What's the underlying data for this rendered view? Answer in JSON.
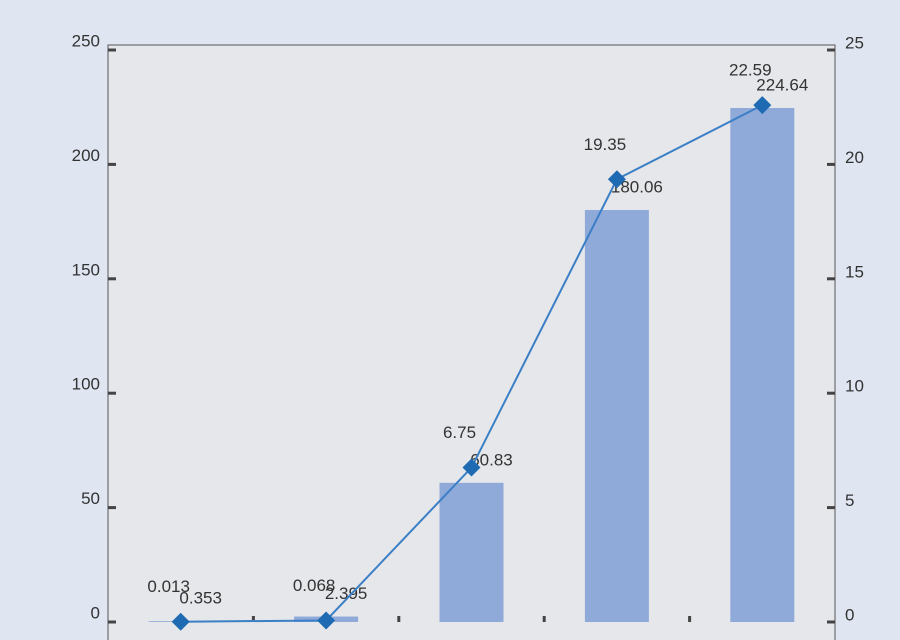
{
  "chart_data": {
    "type": "bar-line",
    "categories": [
      null,
      null,
      null,
      null,
      null
    ],
    "series": [
      {
        "type": "bar",
        "axis": "y",
        "color": "#8fa9d9",
        "values": [
          0.353,
          2.395,
          60.83,
          180.06,
          224.64
        ]
      },
      {
        "type": "line",
        "axis": "y2",
        "color": "#3b7fc6",
        "marker_color": "#1f6bb3",
        "values": [
          0.013,
          0.068,
          6.75,
          19.35,
          22.59
        ]
      }
    ],
    "ylim": [
      0,
      250
    ],
    "yticks": [
      0,
      50,
      100,
      150,
      200,
      250
    ],
    "y2lim": [
      0,
      25
    ],
    "y2ticks": [
      0,
      5,
      10,
      15,
      20,
      25
    ]
  }
}
